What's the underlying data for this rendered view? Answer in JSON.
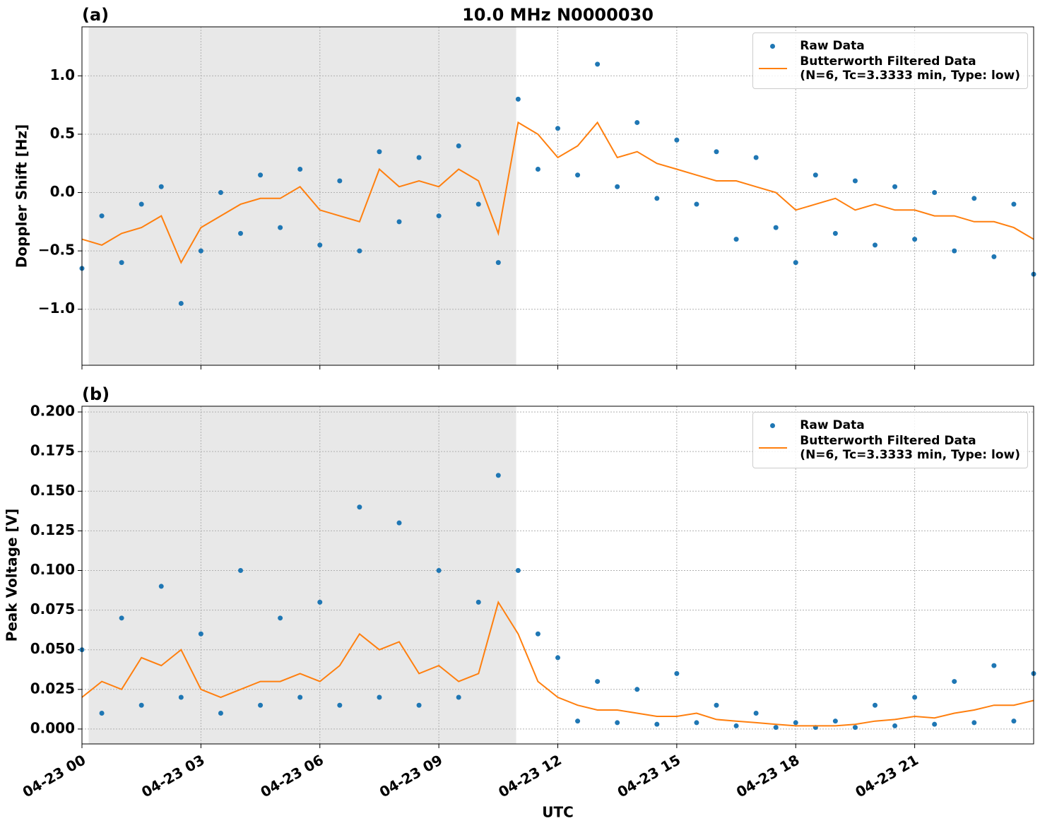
{
  "chart_data": [
    {
      "type": "line",
      "title": "10.0 MHz N0000030",
      "panel_label": "(a)",
      "ylabel": "Doppler Shift [Hz]",
      "x": [
        0,
        0.5,
        1,
        1.5,
        2,
        2.5,
        3,
        3.5,
        4,
        4.5,
        5,
        5.5,
        6,
        6.5,
        7,
        7.5,
        8,
        8.5,
        9,
        9.5,
        10,
        10.5,
        11,
        11.5,
        12,
        12.5,
        13,
        13.5,
        14,
        14.5,
        15,
        15.5,
        16,
        16.5,
        17,
        17.5,
        18,
        18.5,
        19,
        19.5,
        20,
        20.5,
        21,
        21.5,
        22,
        22.5,
        23,
        23.5,
        24
      ],
      "series": [
        {
          "name": "Raw Data",
          "color": "#1f77b4",
          "style": "points",
          "values": [
            -0.65,
            -0.2,
            -0.6,
            -0.1,
            0.05,
            -0.95,
            -0.5,
            0.0,
            -0.35,
            0.15,
            -0.3,
            0.2,
            -0.45,
            0.1,
            -0.5,
            0.35,
            -0.25,
            0.3,
            -0.2,
            0.4,
            -0.1,
            -0.6,
            0.8,
            0.2,
            0.55,
            0.15,
            1.1,
            0.05,
            0.6,
            -0.05,
            0.45,
            -0.1,
            0.35,
            -0.4,
            0.3,
            -0.3,
            -0.6,
            0.15,
            -0.35,
            0.1,
            -0.45,
            0.05,
            -0.4,
            0.0,
            -0.5,
            -0.05,
            -0.55,
            -0.1,
            -0.7
          ]
        },
        {
          "name": "Butterworth Filtered Data\n(N=6, Tc=3.3333 min, Type: low)",
          "color": "#ff7f0e",
          "style": "line",
          "values": [
            -0.4,
            -0.45,
            -0.35,
            -0.3,
            -0.2,
            -0.6,
            -0.3,
            -0.2,
            -0.1,
            -0.05,
            -0.05,
            0.05,
            -0.15,
            -0.2,
            -0.25,
            0.2,
            0.05,
            0.1,
            0.05,
            0.2,
            0.1,
            -0.35,
            0.6,
            0.5,
            0.3,
            0.4,
            0.6,
            0.3,
            0.35,
            0.25,
            0.2,
            0.15,
            0.1,
            0.1,
            0.05,
            0.0,
            -0.15,
            -0.1,
            -0.05,
            -0.15,
            -0.1,
            -0.15,
            -0.15,
            -0.2,
            -0.2,
            -0.25,
            -0.25,
            -0.3,
            -0.4
          ]
        }
      ],
      "xlim": [
        0,
        24
      ],
      "xticks": [
        0,
        3,
        6,
        9,
        12,
        15,
        18,
        21
      ],
      "ylim": [
        -1.48,
        1.42
      ],
      "yticks": [
        {
          "value": -1,
          "label": "−1.0"
        },
        {
          "value": -0.5,
          "label": "−0.5"
        },
        {
          "value": 0,
          "label": "0.0"
        },
        {
          "value": 0.5,
          "label": "0.5"
        },
        {
          "value": 1,
          "label": "1.0"
        }
      ],
      "grid": true,
      "legend": "upper right",
      "shade": [
        0.17,
        10.95
      ],
      "shade_color": "#e8e8e8"
    },
    {
      "type": "line",
      "panel_label": "(b)",
      "ylabel": "Peak Voltage [V]",
      "xlabel": "UTC",
      "x": [
        0,
        0.5,
        1,
        1.5,
        2,
        2.5,
        3,
        3.5,
        4,
        4.5,
        5,
        5.5,
        6,
        6.5,
        7,
        7.5,
        8,
        8.5,
        9,
        9.5,
        10,
        10.5,
        11,
        11.5,
        12,
        12.5,
        13,
        13.5,
        14,
        14.5,
        15,
        15.5,
        16,
        16.5,
        17,
        17.5,
        18,
        18.5,
        19,
        19.5,
        20,
        20.5,
        21,
        21.5,
        22,
        22.5,
        23,
        23.5,
        24
      ],
      "series": [
        {
          "name": "Raw Data",
          "color": "#1f77b4",
          "style": "points",
          "values": [
            0.05,
            0.01,
            0.07,
            0.015,
            0.09,
            0.02,
            0.06,
            0.01,
            0.1,
            0.015,
            0.07,
            0.02,
            0.08,
            0.015,
            0.14,
            0.02,
            0.13,
            0.015,
            0.1,
            0.02,
            0.08,
            0.16,
            0.1,
            0.06,
            0.045,
            0.005,
            0.03,
            0.004,
            0.025,
            0.003,
            0.035,
            0.004,
            0.015,
            0.002,
            0.01,
            0.001,
            0.004,
            0.001,
            0.005,
            0.001,
            0.015,
            0.002,
            0.02,
            0.003,
            0.03,
            0.004,
            0.04,
            0.005,
            0.035
          ]
        },
        {
          "name": "Butterworth Filtered Data\n(N=6, Tc=3.3333 min, Type: low)",
          "color": "#ff7f0e",
          "style": "line",
          "values": [
            0.02,
            0.03,
            0.025,
            0.045,
            0.04,
            0.05,
            0.025,
            0.02,
            0.025,
            0.03,
            0.03,
            0.035,
            0.03,
            0.04,
            0.06,
            0.05,
            0.055,
            0.035,
            0.04,
            0.03,
            0.035,
            0.08,
            0.06,
            0.03,
            0.02,
            0.015,
            0.012,
            0.012,
            0.01,
            0.008,
            0.008,
            0.01,
            0.006,
            0.005,
            0.004,
            0.003,
            0.002,
            0.002,
            0.002,
            0.003,
            0.005,
            0.006,
            0.008,
            0.007,
            0.01,
            0.012,
            0.015,
            0.015,
            0.018
          ]
        }
      ],
      "xlim": [
        0,
        24
      ],
      "xticks": [
        {
          "value": 0,
          "label": "04-23 00"
        },
        {
          "value": 3,
          "label": "04-23 03"
        },
        {
          "value": 6,
          "label": "04-23 06"
        },
        {
          "value": 9,
          "label": "04-23 09"
        },
        {
          "value": 12,
          "label": "04-23 12"
        },
        {
          "value": 15,
          "label": "04-23 15"
        },
        {
          "value": 18,
          "label": "04-23 18"
        },
        {
          "value": 21,
          "label": "04-23 21"
        }
      ],
      "ylim": [
        -0.0094,
        0.2036
      ],
      "yticks": [
        {
          "value": 0,
          "label": "0.000"
        },
        {
          "value": 0.025,
          "label": "0.025"
        },
        {
          "value": 0.05,
          "label": "0.050"
        },
        {
          "value": 0.075,
          "label": "0.075"
        },
        {
          "value": 0.1,
          "label": "0.100"
        },
        {
          "value": 0.125,
          "label": "0.125"
        },
        {
          "value": 0.15,
          "label": "0.150"
        },
        {
          "value": 0.175,
          "label": "0.175"
        },
        {
          "value": 0.2,
          "label": "0.200"
        }
      ],
      "grid": true,
      "legend": "upper right",
      "shade": [
        0.17,
        10.95
      ],
      "shade_color": "#e8e8e8"
    }
  ]
}
